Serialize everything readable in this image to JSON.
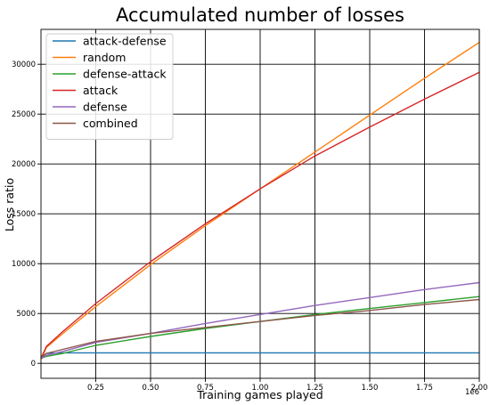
{
  "chart_data": {
    "type": "line",
    "title": "Accumulated number of losses",
    "xlabel": "Training games played",
    "ylabel": "Loss ratio",
    "x_offset_label": "1e6",
    "xlim": [
      0,
      2000000
    ],
    "ylim": [
      -1500,
      33500
    ],
    "grid": true,
    "legend_position": "top-left",
    "x_ticks": [
      250000,
      500000,
      750000,
      1000000,
      1250000,
      1500000,
      1750000,
      2000000
    ],
    "x_tick_labels": [
      "0.25",
      "0.50",
      "0.75",
      "1.00",
      "1.25",
      "1.50",
      "1.75",
      "2.00"
    ],
    "y_ticks": [
      0,
      5000,
      10000,
      15000,
      20000,
      25000,
      30000
    ],
    "y_tick_labels": [
      "0",
      "5000",
      "10000",
      "15000",
      "20000",
      "25000",
      "30000"
    ],
    "x": [
      0,
      25000,
      100000,
      250000,
      500000,
      750000,
      1000000,
      1250000,
      1500000,
      1750000,
      2000000
    ],
    "series": [
      {
        "name": "attack-defense",
        "color": "#1f77b4",
        "values": [
          500,
          1000,
          1050,
          1050,
          1050,
          1050,
          1050,
          1050,
          1050,
          1050,
          1050
        ]
      },
      {
        "name": "random",
        "color": "#ff7f0e",
        "values": [
          400,
          1600,
          3000,
          5700,
          9900,
          13800,
          17500,
          21200,
          24900,
          28600,
          32200
        ]
      },
      {
        "name": "defense-attack",
        "color": "#2ca02c",
        "values": [
          500,
          700,
          1000,
          1800,
          2700,
          3500,
          4200,
          4900,
          5500,
          6100,
          6700
        ]
      },
      {
        "name": "attack",
        "color": "#d62728",
        "values": [
          500,
          1700,
          3200,
          6000,
          10200,
          14000,
          17500,
          20800,
          23700,
          26500,
          29200
        ]
      },
      {
        "name": "defense",
        "color": "#9467bd",
        "values": [
          500,
          800,
          1200,
          2100,
          3000,
          4000,
          4900,
          5800,
          6600,
          7400,
          8100
        ]
      },
      {
        "name": "combined",
        "color": "#8c564b",
        "values": [
          600,
          1000,
          1400,
          2200,
          3000,
          3600,
          4200,
          4800,
          5300,
          5900,
          6400
        ]
      }
    ]
  }
}
